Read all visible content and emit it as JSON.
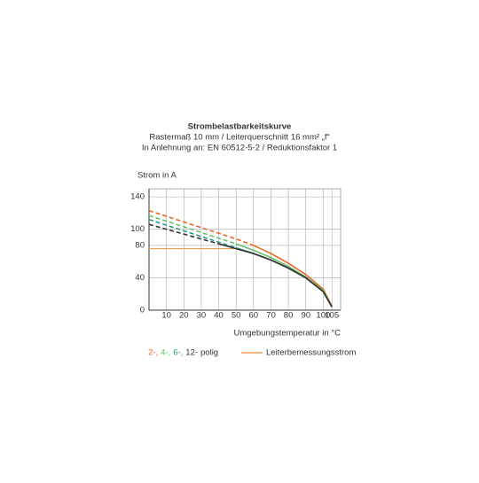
{
  "chart_data": {
    "type": "line",
    "title": "Strombelastbarkeitskurve",
    "subtitle": [
      "Rastermaß 10 mm / Leiterquerschnitt 16 mm² „f“",
      "In Anlehnung an: EN 60512-5-2 / Reduktionsfaktor 1"
    ],
    "y_label": "Strom in A",
    "x_label": "Umgebungstemperatur in °C",
    "xlim": [
      0,
      110
    ],
    "ylim": [
      0,
      150
    ],
    "xticks": [
      10,
      20,
      30,
      40,
      50,
      60,
      70,
      80,
      90,
      100,
      105
    ],
    "yticks": [
      0,
      40,
      80,
      100,
      140
    ],
    "grid": true,
    "series_suffix": "polig",
    "series": [
      {
        "name": "2-,",
        "color": "#e8692a",
        "dashed_until_x": 60,
        "x": [
          0,
          10,
          20,
          30,
          40,
          50,
          60,
          70,
          80,
          90,
          100,
          105
        ],
        "values": [
          123,
          116,
          109,
          102,
          95,
          88,
          80,
          70,
          58,
          44,
          26,
          5
        ]
      },
      {
        "name": "4-,",
        "color": "#6cbf6a",
        "dashed_until_x": 50,
        "x": [
          0,
          10,
          20,
          30,
          40,
          50,
          60,
          70,
          80,
          90,
          100,
          105
        ],
        "values": [
          117,
          110,
          103,
          96,
          89,
          82,
          74,
          65,
          54,
          41,
          24,
          4
        ]
      },
      {
        "name": "6-,",
        "color": "#2a9a86",
        "dashed_until_x": 50,
        "x": [
          0,
          10,
          20,
          30,
          40,
          50,
          60,
          70,
          80,
          90,
          100,
          105
        ],
        "values": [
          112,
          105,
          98,
          91,
          84,
          77,
          70,
          62,
          52,
          40,
          23,
          4
        ]
      },
      {
        "name": "12-",
        "color": "#333333",
        "dashed_until_x": 40,
        "x": [
          0,
          10,
          20,
          30,
          40,
          50,
          60,
          70,
          80,
          90,
          100,
          105
        ],
        "values": [
          106,
          100,
          94,
          88,
          82,
          76,
          70,
          62,
          52,
          40,
          23,
          4
        ]
      }
    ],
    "reference": {
      "name": "Leiterbemessungsstrom",
      "color": "#f0a050",
      "x": [
        0,
        50
      ],
      "values": [
        76,
        76
      ]
    }
  }
}
